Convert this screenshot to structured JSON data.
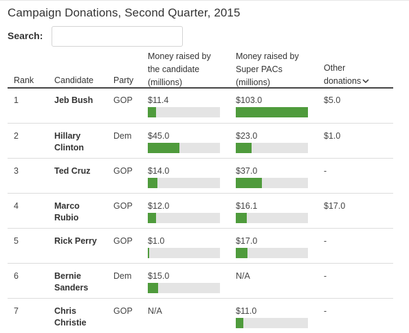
{
  "title": "Campaign Donations, Second Quarter, 2015",
  "search": {
    "label": "Search:",
    "placeholder": "",
    "value": ""
  },
  "headers": {
    "rank": "Rank",
    "candidate": "Candidate",
    "party": "Party",
    "money_candidate": [
      "Money raised by",
      "the candidate",
      "(millions)"
    ],
    "money_pacs": [
      "Money raised by",
      "Super PACs",
      "(millions)"
    ],
    "other": [
      "Other",
      "donations"
    ]
  },
  "colors": {
    "bar_fill": "#4f9b3c",
    "bar_track": "#e4e4e4"
  },
  "bar_max_millions": 103.0,
  "rows": [
    {
      "rank": "1",
      "candidate": [
        "Jeb Bush"
      ],
      "party": "GOP",
      "candidate_money": "$11.4",
      "candidate_value": 11.4,
      "pac_money": "$103.0",
      "pac_value": 103.0,
      "other": "$5.0"
    },
    {
      "rank": "2",
      "candidate": [
        "Hillary",
        "Clinton"
      ],
      "party": "Dem",
      "candidate_money": "$45.0",
      "candidate_value": 45.0,
      "pac_money": "$23.0",
      "pac_value": 23.0,
      "other": "$1.0"
    },
    {
      "rank": "3",
      "candidate": [
        "Ted Cruz"
      ],
      "party": "GOP",
      "candidate_money": "$14.0",
      "candidate_value": 14.0,
      "pac_money": "$37.0",
      "pac_value": 37.0,
      "other": "-"
    },
    {
      "rank": "4",
      "candidate": [
        "Marco",
        "Rubio"
      ],
      "party": "GOP",
      "candidate_money": "$12.0",
      "candidate_value": 12.0,
      "pac_money": "$16.1",
      "pac_value": 16.1,
      "other": "$17.0"
    },
    {
      "rank": "5",
      "candidate": [
        "Rick Perry"
      ],
      "party": "GOP",
      "candidate_money": "$1.0",
      "candidate_value": 1.0,
      "pac_money": "$17.0",
      "pac_value": 17.0,
      "other": "-"
    },
    {
      "rank": "6",
      "candidate": [
        "Bernie",
        "Sanders"
      ],
      "party": "Dem",
      "candidate_money": "$15.0",
      "candidate_value": 15.0,
      "pac_money": "N/A",
      "pac_value": null,
      "other": "-"
    },
    {
      "rank": "7",
      "candidate": [
        "Chris",
        "Christie"
      ],
      "party": "GOP",
      "candidate_money": "N/A",
      "candidate_value": null,
      "pac_money": "$11.0",
      "pac_value": 11.0,
      "other": "-"
    }
  ]
}
